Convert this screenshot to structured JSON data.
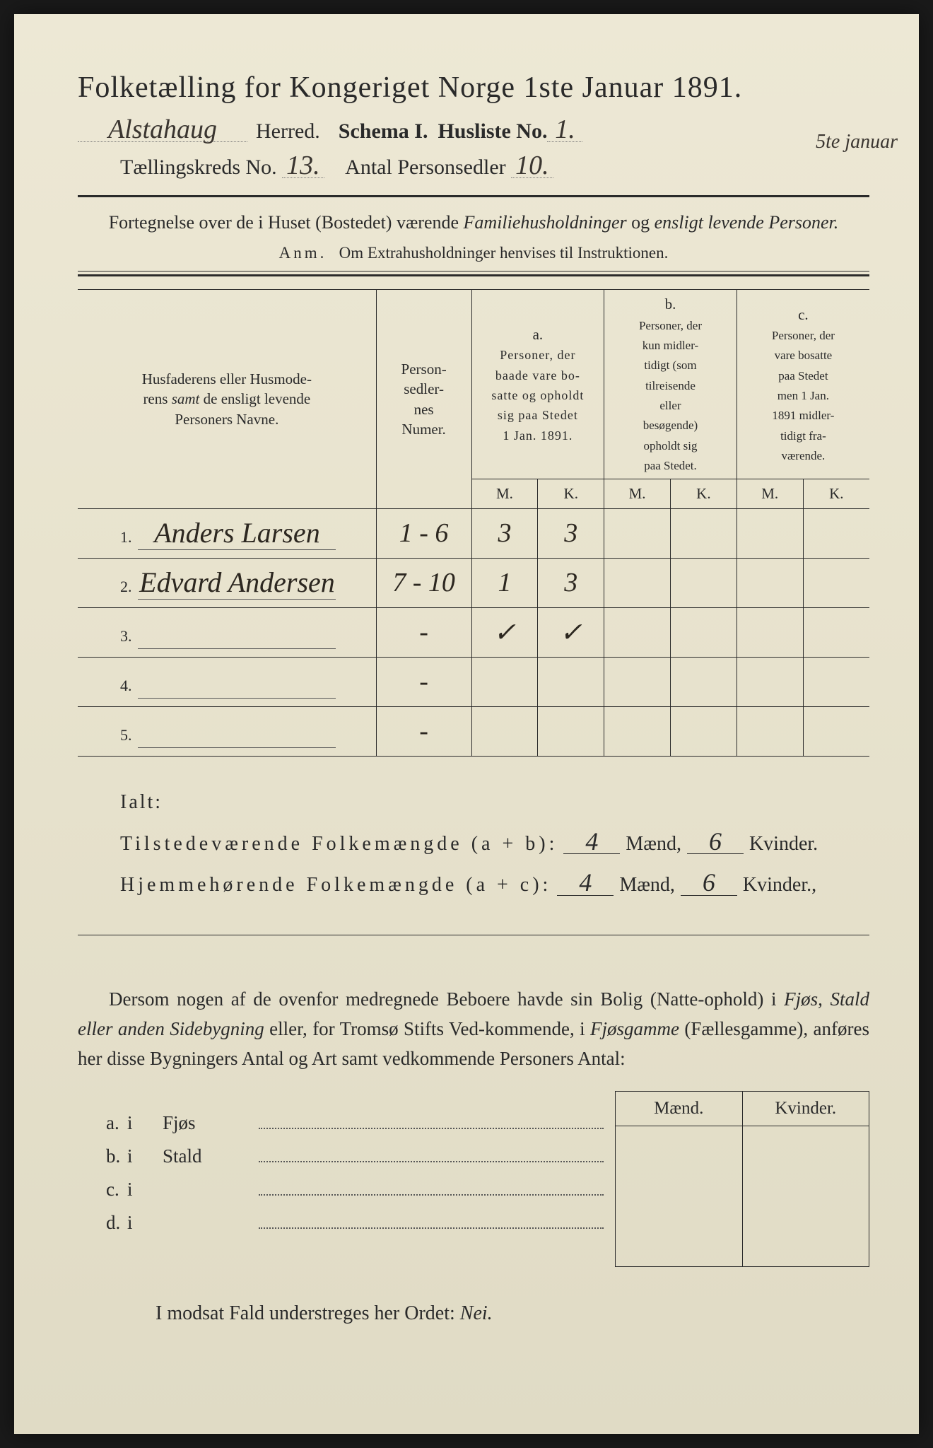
{
  "title": "Folketælling for Kongeriget Norge 1ste Januar 1891.",
  "header": {
    "herred_value": "Alstahaug",
    "herred_label": "Herred.",
    "schema_label": "Schema I.",
    "husliste_label": "Husliste No.",
    "husliste_value": "1.",
    "margin_note": "5te januar",
    "kreds_label": "Tællingskreds No.",
    "kreds_value": "13.",
    "antal_label": "Antal Personsedler",
    "antal_value": "10."
  },
  "subtitle": "Fortegnelse over de i Huset (Bostedet) værende Familiehusholdninger og ensligt levende Personer.",
  "anm": {
    "prefix": "Anm.",
    "text": "Om Extrahusholdninger henvises til Instruktionen."
  },
  "table": {
    "col_name": "Husfaderens eller Husmoderens samt de ensligt levende Personers Navne.",
    "col_num": "Person-sedler-nes Numer.",
    "col_a_top": "a.",
    "col_a": "Personer, der baade vare bo-satte og opholdt sig paa Stedet 1 Jan. 1891.",
    "col_b_top": "b.",
    "col_b": "Personer, der kun midler-tidigt (som tilreisende eller besøgende) opholdt sig paa Stedet.",
    "col_c_top": "c.",
    "col_c": "Personer, der vare bosatte paa Stedet men 1 Jan. 1891 midler-tidigt fra-værende.",
    "M": "M.",
    "K": "K.",
    "rows": [
      {
        "idx": "1.",
        "name": "Anders Larsen",
        "num": "1 - 6",
        "a_m": "3",
        "a_k": "3",
        "b_m": "",
        "b_k": "",
        "c_m": "",
        "c_k": ""
      },
      {
        "idx": "2.",
        "name": "Edvard Andersen",
        "num": "7 - 10",
        "a_m": "1",
        "a_k": "3",
        "b_m": "",
        "b_k": "",
        "c_m": "",
        "c_k": ""
      },
      {
        "idx": "3.",
        "name": "",
        "num": "-",
        "a_m": "✓",
        "a_k": "✓",
        "b_m": "",
        "b_k": "",
        "c_m": "",
        "c_k": ""
      },
      {
        "idx": "4.",
        "name": "",
        "num": "-",
        "a_m": "",
        "a_k": "",
        "b_m": "",
        "b_k": "",
        "c_m": "",
        "c_k": ""
      },
      {
        "idx": "5.",
        "name": "",
        "num": "-",
        "a_m": "",
        "a_k": "",
        "b_m": "",
        "b_k": "",
        "c_m": "",
        "c_k": ""
      }
    ]
  },
  "totals": {
    "ialt": "Ialt:",
    "line1_label": "Tilstedeværende Folkemængde (a + b):",
    "line2_label": "Hjemmehørende Folkemængde (a + c):",
    "maend": "Mænd,",
    "kvinder_1": "Kvinder.",
    "kvinder_2": "Kvinder.,",
    "v1_m": "4",
    "v1_k": "6",
    "v2_m": "4",
    "v2_k": "6"
  },
  "body": "Dersom nogen af de ovenfor medregnede Beboere havde sin Bolig (Natte-ophold) i Fjøs, Stald eller anden Sidebygning eller, for Tromsø Stifts Ved-kommende, i Fjøsgamme (Fællesgamme), anføres her disse Bygningers Antal og Art samt vedkommende Personers Antal:",
  "mk": {
    "maend": "Mænd.",
    "kvinder": "Kvinder."
  },
  "buildings": [
    {
      "lbl": "a.",
      "i": "i",
      "typ": "Fjøs"
    },
    {
      "lbl": "b.",
      "i": "i",
      "typ": "Stald"
    },
    {
      "lbl": "c.",
      "i": "i",
      "typ": ""
    },
    {
      "lbl": "d.",
      "i": "i",
      "typ": ""
    }
  ],
  "final": {
    "text": "I modsat Fald understreges her Ordet:",
    "nei": "Nei."
  },
  "colors": {
    "paper": "#e8e3ce",
    "ink": "#2a2a2a",
    "handwriting": "#3a3530"
  }
}
